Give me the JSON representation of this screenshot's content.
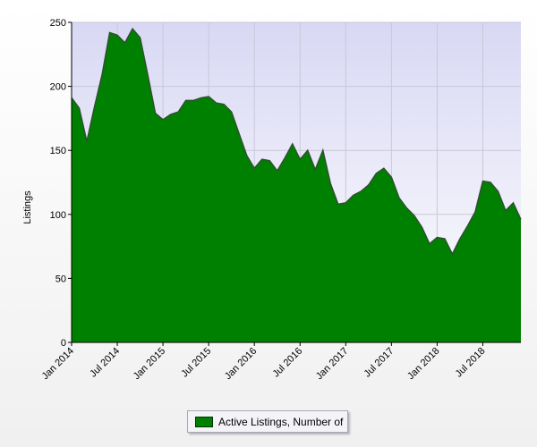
{
  "chart_data": {
    "type": "area",
    "title": "",
    "xlabel": "",
    "ylabel": "Listings",
    "ylim": [
      0,
      250
    ],
    "yticks": [
      0,
      50,
      100,
      150,
      200,
      250
    ],
    "xlim": [
      "Jan 2014",
      "Dec 2018"
    ],
    "xtick_labels": [
      "Jan 2014",
      "Jul 2014",
      "Jan 2015",
      "Jul 2015",
      "Jan 2016",
      "Jul 2016",
      "Jan 2017",
      "Jul 2017",
      "Jan 2018",
      "Jul 2018"
    ],
    "grid": true,
    "legend_position": "bottom-center",
    "colors": {
      "fill": "#008000",
      "line": "#2f4f2f",
      "plot_bg": "#e6e6fa"
    },
    "series": [
      {
        "name": "Active Listings, Number of",
        "x": [
          "Jan 2014",
          "Feb 2014",
          "Mar 2014",
          "Apr 2014",
          "May 2014",
          "Jun 2014",
          "Jul 2014",
          "Aug 2014",
          "Sep 2014",
          "Oct 2014",
          "Nov 2014",
          "Dec 2014",
          "Jan 2015",
          "Feb 2015",
          "Mar 2015",
          "Apr 2015",
          "May 2015",
          "Jun 2015",
          "Jul 2015",
          "Aug 2015",
          "Sep 2015",
          "Oct 2015",
          "Nov 2015",
          "Dec 2015",
          "Jan 2016",
          "Feb 2016",
          "Mar 2016",
          "Apr 2016",
          "May 2016",
          "Jun 2016",
          "Jul 2016",
          "Aug 2016",
          "Sep 2016",
          "Oct 2016",
          "Nov 2016",
          "Dec 2016",
          "Jan 2017",
          "Feb 2017",
          "Mar 2017",
          "Apr 2017",
          "May 2017",
          "Jun 2017",
          "Jul 2017",
          "Aug 2017",
          "Sep 2017",
          "Oct 2017",
          "Nov 2017",
          "Dec 2017",
          "Jan 2018",
          "Feb 2018",
          "Mar 2018",
          "Apr 2018",
          "May 2018",
          "Jun 2018",
          "Jul 2018",
          "Aug 2018",
          "Sep 2018",
          "Oct 2018",
          "Nov 2018",
          "Dec 2018"
        ],
        "values": [
          191,
          183,
          157,
          184,
          209,
          242,
          240,
          234,
          245,
          238,
          209,
          179,
          174,
          178,
          180,
          189,
          189,
          191,
          192,
          187,
          186,
          180,
          163,
          146,
          136,
          143,
          142,
          134,
          144,
          155,
          143,
          150,
          135,
          150,
          124,
          108,
          109,
          115,
          118,
          123,
          132,
          136,
          129,
          113,
          105,
          99,
          90,
          77,
          82,
          81,
          69,
          81,
          91,
          102,
          126,
          125,
          118,
          103,
          109,
          96
        ]
      }
    ]
  }
}
